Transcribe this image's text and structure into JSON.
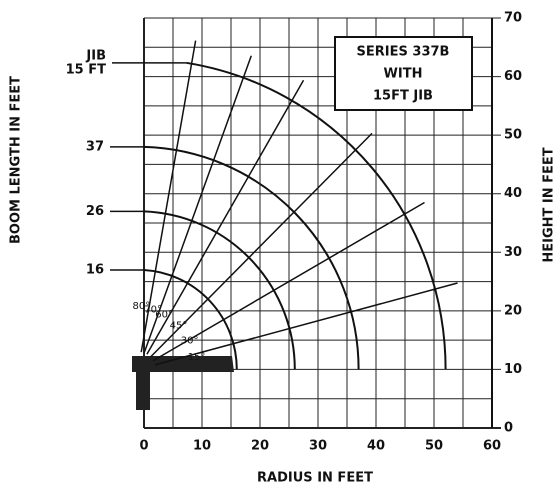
{
  "chart_data": {
    "type": "range_diagram",
    "title_lines": [
      "SERIES 337B",
      "WITH",
      "15FT JIB"
    ],
    "x_label": "RADIUS IN FEET",
    "y_label": "BOOM LENGTH IN FEET",
    "y2_label": "HEIGHT IN FEET",
    "xlim": [
      0,
      60
    ],
    "xticks": [
      0,
      10,
      20,
      30,
      40,
      50,
      60
    ],
    "ylim": [
      0,
      70
    ],
    "yticks": [
      0,
      10,
      20,
      30,
      40,
      50,
      60,
      70
    ],
    "x_minor_ticks": [
      5,
      15,
      25,
      35,
      45,
      55
    ],
    "y_minor_ticks": [
      5,
      15,
      25,
      35,
      45,
      55,
      65
    ],
    "grid": true,
    "pivot": [
      -1,
      10
    ],
    "booms": [
      {
        "label": "16",
        "reach": 17
      },
      {
        "label": "26",
        "reach": 27
      },
      {
        "label": "37",
        "reach": 38
      }
    ],
    "jib": {
      "label": "JIB",
      "sublabel": "15 FT",
      "reach": 53,
      "start_angle": 81
    },
    "angles": [
      {
        "value": 15,
        "label": "15°"
      },
      {
        "value": 30,
        "label": "30°"
      },
      {
        "value": 45,
        "label": "45°"
      },
      {
        "value": 60,
        "label": "60°"
      },
      {
        "value": 70,
        "label": "70°"
      },
      {
        "value": 80,
        "label": "80°"
      }
    ],
    "ray_length": 57
  }
}
